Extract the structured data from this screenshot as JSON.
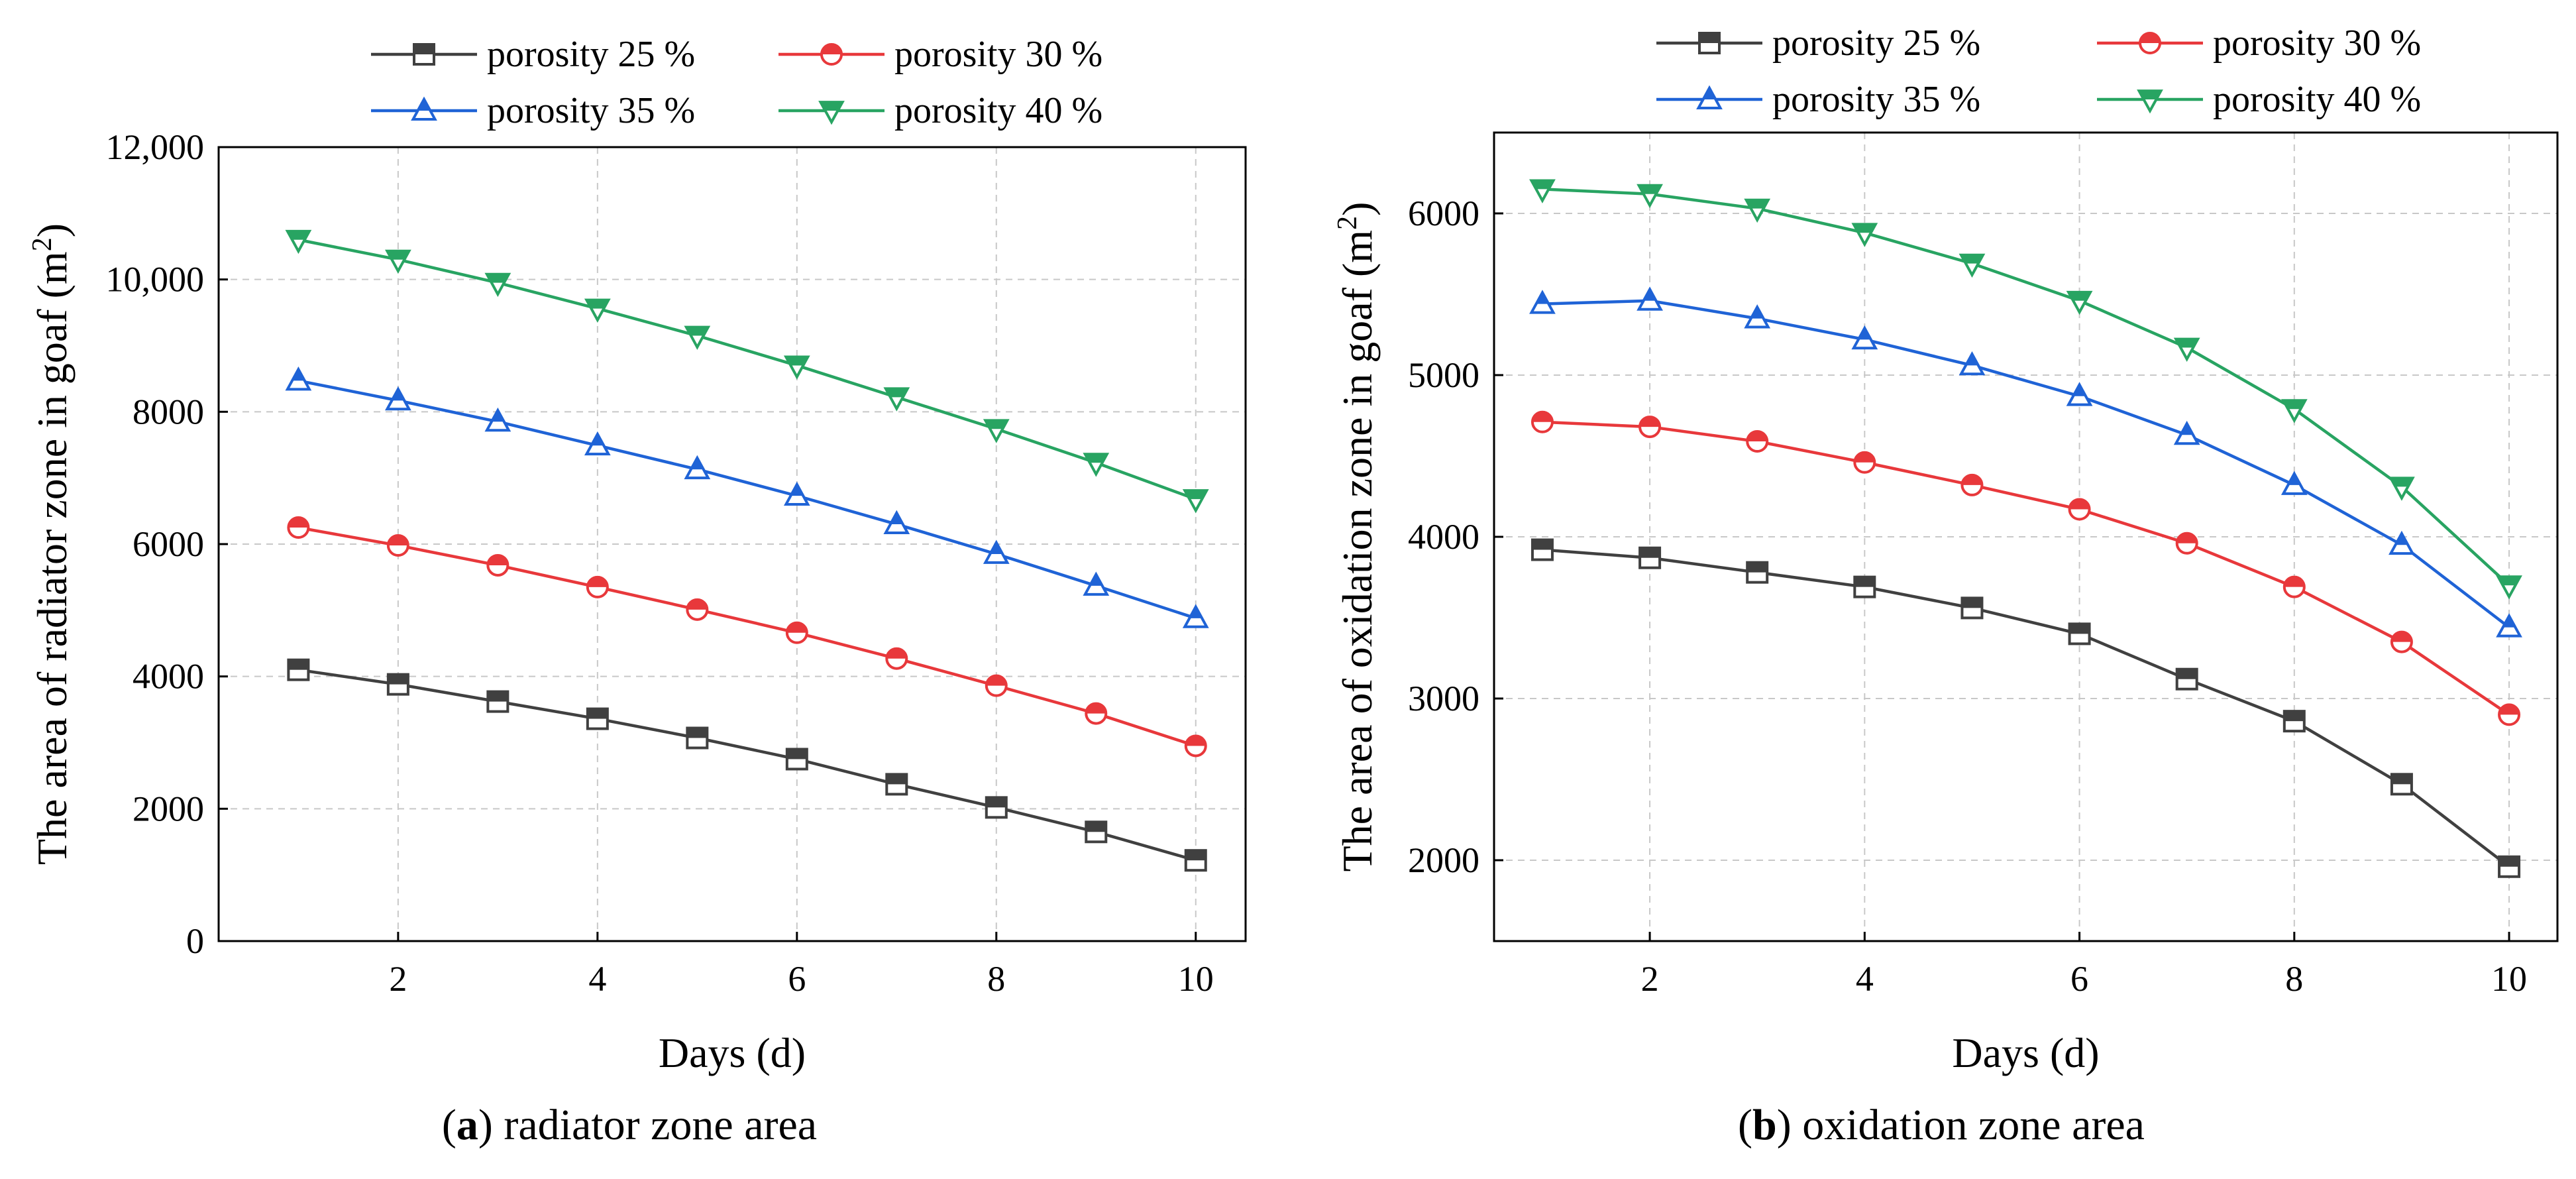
{
  "chart_data": [
    {
      "type": "line",
      "panel": "a",
      "caption_letter": "a",
      "caption_text": " radiator zone area",
      "xlabel": "Days (d)",
      "ylabel_main": "The area of radiator zone in goaf (m",
      "ylabel_sup": "2",
      "ylabel_close": ")",
      "x": [
        1,
        2,
        3,
        4,
        5,
        6,
        7,
        8,
        9,
        10
      ],
      "xlim": [
        0.2,
        10.5
      ],
      "ylim": [
        0,
        12000
      ],
      "xticks": [
        2,
        4,
        6,
        8,
        10
      ],
      "yticks": [
        0,
        2000,
        4000,
        6000,
        8000,
        10000,
        12000
      ],
      "ytick_labels": [
        "0",
        "2000",
        "4000",
        "6000",
        "8000",
        "10,000",
        "12,000"
      ],
      "grid": true,
      "legend_position": "top",
      "series": [
        {
          "name": "porosity 25 %",
          "color": "#404040",
          "marker": "square",
          "values": [
            4100,
            3880,
            3620,
            3360,
            3070,
            2750,
            2370,
            2020,
            1650,
            1220
          ]
        },
        {
          "name": "porosity 30 %",
          "color": "#e8383b",
          "marker": "circle",
          "values": [
            6250,
            5980,
            5680,
            5350,
            5010,
            4660,
            4270,
            3860,
            3440,
            2950
          ]
        },
        {
          "name": "porosity 35 %",
          "color": "#1f63d6",
          "marker": "triangle-up",
          "values": [
            8470,
            8170,
            7850,
            7490,
            7130,
            6730,
            6300,
            5850,
            5370,
            4880
          ]
        },
        {
          "name": "porosity 40 %",
          "color": "#28a462",
          "marker": "triangle-down",
          "values": [
            10600,
            10300,
            9950,
            9560,
            9150,
            8700,
            8220,
            7740,
            7230,
            6680
          ]
        }
      ]
    },
    {
      "type": "line",
      "panel": "b",
      "caption_letter": "b",
      "caption_text": " oxidation zone area",
      "xlabel": "Days (d)",
      "ylabel_main": "The area of oxidation zone in goaf (m",
      "ylabel_sup": "2",
      "ylabel_close": ")",
      "x": [
        1,
        2,
        3,
        4,
        5,
        6,
        7,
        8,
        9,
        10
      ],
      "xlim": [
        0.55,
        10.45
      ],
      "ylim": [
        1500,
        6500
      ],
      "xticks": [
        2,
        4,
        6,
        8,
        10
      ],
      "yticks": [
        2000,
        3000,
        4000,
        5000,
        6000
      ],
      "ytick_labels": [
        "2000",
        "3000",
        "4000",
        "5000",
        "6000"
      ],
      "grid": true,
      "legend_position": "top",
      "series": [
        {
          "name": "porosity 25 %",
          "color": "#404040",
          "marker": "square",
          "values": [
            3920,
            3870,
            3780,
            3690,
            3560,
            3400,
            3120,
            2860,
            2470,
            1960
          ]
        },
        {
          "name": "porosity 30 %",
          "color": "#e8383b",
          "marker": "circle",
          "values": [
            4710,
            4680,
            4590,
            4460,
            4320,
            4170,
            3960,
            3690,
            3350,
            2900
          ]
        },
        {
          "name": "porosity 35 %",
          "color": "#1f63d6",
          "marker": "triangle-up",
          "values": [
            5440,
            5460,
            5350,
            5220,
            5060,
            4870,
            4630,
            4320,
            3950,
            3440
          ]
        },
        {
          "name": "porosity 40 %",
          "color": "#28a462",
          "marker": "triangle-down",
          "values": [
            6150,
            6120,
            6030,
            5880,
            5690,
            5460,
            5170,
            4790,
            4310,
            3700
          ]
        }
      ]
    }
  ]
}
